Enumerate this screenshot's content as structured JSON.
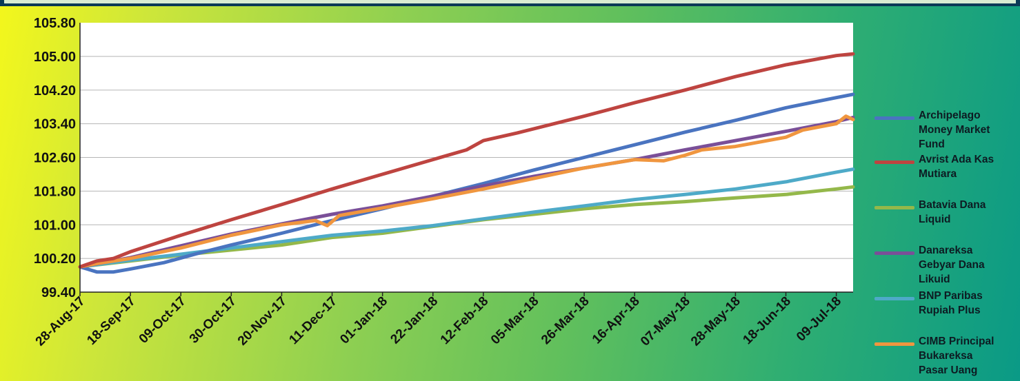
{
  "chart_data": {
    "type": "line",
    "title": "",
    "xlabel": "",
    "ylabel": "",
    "ylim": [
      99.4,
      105.8
    ],
    "yticks": [
      "105.80",
      "105.00",
      "104.20",
      "103.40",
      "102.60",
      "101.80",
      "101.00",
      "100.20",
      "99.40"
    ],
    "xticks": [
      "28-Aug-17",
      "18-Sep-17",
      "09-Oct-17",
      "30-Oct-17",
      "20-Nov-17",
      "11-Dec-17",
      "01-Jan-18",
      "22-Jan-18",
      "12-Feb-18",
      "05-Mar-18",
      "26-Mar-18",
      "16-Apr-18",
      "07-May-18",
      "28-May-18",
      "18-Jun-18",
      "09-Jul-18"
    ],
    "x_end": "16-Jul-18",
    "grid": true,
    "legend_position": "right",
    "series": [
      {
        "name": "Archipelago Money Market Fund",
        "color": "#4a74c0",
        "points": [
          [
            "28-Aug-17",
            100.0
          ],
          [
            "04-Sep-17",
            99.88
          ],
          [
            "11-Sep-17",
            99.88
          ],
          [
            "18-Sep-17",
            99.95
          ],
          [
            "02-Oct-17",
            100.1
          ],
          [
            "16-Oct-17",
            100.32
          ],
          [
            "30-Oct-17",
            100.52
          ],
          [
            "20-Nov-17",
            100.8
          ],
          [
            "11-Dec-17",
            101.1
          ],
          [
            "01-Jan-18",
            101.38
          ],
          [
            "22-Jan-18",
            101.68
          ],
          [
            "12-Feb-18",
            101.98
          ],
          [
            "05-Mar-18",
            102.3
          ],
          [
            "26-Mar-18",
            102.6
          ],
          [
            "16-Apr-18",
            102.9
          ],
          [
            "07-May-18",
            103.2
          ],
          [
            "28-May-18",
            103.48
          ],
          [
            "18-Jun-18",
            103.78
          ],
          [
            "09-Jul-18",
            104.02
          ],
          [
            "16-Jul-18",
            104.1
          ]
        ]
      },
      {
        "name": "Avrist Ada Kas Mutiara",
        "color": "#be4440",
        "points": [
          [
            "28-Aug-17",
            100.0
          ],
          [
            "04-Sep-17",
            100.14
          ],
          [
            "11-Sep-17",
            100.2
          ],
          [
            "18-Sep-17",
            100.36
          ],
          [
            "09-Oct-17",
            100.75
          ],
          [
            "30-Oct-17",
            101.12
          ],
          [
            "20-Nov-17",
            101.48
          ],
          [
            "11-Dec-17",
            101.85
          ],
          [
            "01-Jan-18",
            102.2
          ],
          [
            "22-Jan-18",
            102.55
          ],
          [
            "05-Feb-18",
            102.78
          ],
          [
            "12-Feb-18",
            103.0
          ],
          [
            "26-Feb-18",
            103.18
          ],
          [
            "26-Mar-18",
            103.58
          ],
          [
            "16-Apr-18",
            103.9
          ],
          [
            "07-May-18",
            104.2
          ],
          [
            "28-May-18",
            104.52
          ],
          [
            "18-Jun-18",
            104.8
          ],
          [
            "09-Jul-18",
            105.02
          ],
          [
            "16-Jul-18",
            105.06
          ]
        ]
      },
      {
        "name": "Batavia Dana Liquid",
        "color": "#94b84a",
        "points": [
          [
            "28-Aug-17",
            100.0
          ],
          [
            "18-Sep-17",
            100.14
          ],
          [
            "09-Oct-17",
            100.28
          ],
          [
            "30-Oct-17",
            100.4
          ],
          [
            "20-Nov-17",
            100.52
          ],
          [
            "11-Dec-17",
            100.7
          ],
          [
            "01-Jan-18",
            100.8
          ],
          [
            "22-Jan-18",
            100.96
          ],
          [
            "12-Feb-18",
            101.12
          ],
          [
            "05-Mar-18",
            101.25
          ],
          [
            "26-Mar-18",
            101.38
          ],
          [
            "16-Apr-18",
            101.48
          ],
          [
            "07-May-18",
            101.55
          ],
          [
            "28-May-18",
            101.64
          ],
          [
            "18-Jun-18",
            101.72
          ],
          [
            "09-Jul-18",
            101.85
          ],
          [
            "16-Jul-18",
            101.9
          ]
        ]
      },
      {
        "name": "Danareksa Gebyar Dana Likuid",
        "color": "#7a4f98",
        "points": [
          [
            "28-Aug-17",
            100.0
          ],
          [
            "18-Sep-17",
            100.22
          ],
          [
            "09-Oct-17",
            100.5
          ],
          [
            "30-Oct-17",
            100.78
          ],
          [
            "20-Nov-17",
            101.02
          ],
          [
            "11-Dec-17",
            101.25
          ],
          [
            "01-Jan-18",
            101.45
          ],
          [
            "22-Jan-18",
            101.68
          ],
          [
            "12-Feb-18",
            101.92
          ],
          [
            "05-Mar-18",
            102.15
          ],
          [
            "26-Mar-18",
            102.35
          ],
          [
            "16-Apr-18",
            102.55
          ],
          [
            "07-May-18",
            102.78
          ],
          [
            "28-May-18",
            103.0
          ],
          [
            "18-Jun-18",
            103.22
          ],
          [
            "09-Jul-18",
            103.45
          ],
          [
            "16-Jul-18",
            103.55
          ]
        ]
      },
      {
        "name": "BNP Paribas Rupiah Plus",
        "color": "#4eaac8",
        "points": [
          [
            "28-Aug-17",
            100.0
          ],
          [
            "18-Sep-17",
            100.16
          ],
          [
            "09-Oct-17",
            100.3
          ],
          [
            "30-Oct-17",
            100.45
          ],
          [
            "20-Nov-17",
            100.6
          ],
          [
            "11-Dec-17",
            100.75
          ],
          [
            "01-Jan-18",
            100.85
          ],
          [
            "22-Jan-18",
            100.98
          ],
          [
            "12-Feb-18",
            101.14
          ],
          [
            "05-Mar-18",
            101.3
          ],
          [
            "26-Mar-18",
            101.45
          ],
          [
            "16-Apr-18",
            101.6
          ],
          [
            "07-May-18",
            101.72
          ],
          [
            "28-May-18",
            101.85
          ],
          [
            "18-Jun-18",
            102.02
          ],
          [
            "09-Jul-18",
            102.25
          ],
          [
            "16-Jul-18",
            102.32
          ]
        ]
      },
      {
        "name": "CIMB Principal Bukareksa Pasar Uang",
        "color": "#f0963f",
        "points": [
          [
            "28-Aug-17",
            100.0
          ],
          [
            "04-Sep-17",
            100.08
          ],
          [
            "18-Sep-17",
            100.2
          ],
          [
            "09-Oct-17",
            100.45
          ],
          [
            "30-Oct-17",
            100.75
          ],
          [
            "20-Nov-17",
            101.0
          ],
          [
            "04-Dec-17",
            101.1
          ],
          [
            "09-Dec-17",
            100.98
          ],
          [
            "14-Dec-17",
            101.22
          ],
          [
            "01-Jan-18",
            101.4
          ],
          [
            "22-Jan-18",
            101.62
          ],
          [
            "12-Feb-18",
            101.85
          ],
          [
            "05-Mar-18",
            102.1
          ],
          [
            "26-Mar-18",
            102.35
          ],
          [
            "16-Apr-18",
            102.55
          ],
          [
            "28-Apr-18",
            102.52
          ],
          [
            "07-May-18",
            102.65
          ],
          [
            "14-May-18",
            102.78
          ],
          [
            "28-May-18",
            102.86
          ],
          [
            "18-Jun-18",
            103.08
          ],
          [
            "25-Jun-18",
            103.25
          ],
          [
            "09-Jul-18",
            103.4
          ],
          [
            "13-Jul-18",
            103.58
          ],
          [
            "16-Jul-18",
            103.5
          ]
        ]
      }
    ]
  },
  "legend": [
    {
      "lines": [
        "Archipelago",
        "Money Market",
        "Fund"
      ]
    },
    {
      "lines": [
        "Avrist Ada Kas",
        "Mutiara"
      ]
    },
    {
      "lines": [
        "Batavia Dana",
        "Liquid"
      ]
    },
    {
      "lines": [
        "Danareksa",
        "Gebyar Dana",
        "Likuid"
      ]
    },
    {
      "lines": [
        "BNP Paribas",
        "Rupiah Plus"
      ]
    },
    {
      "lines": [
        "CIMB Principal",
        "Bukareksa",
        "Pasar Uang"
      ]
    }
  ]
}
